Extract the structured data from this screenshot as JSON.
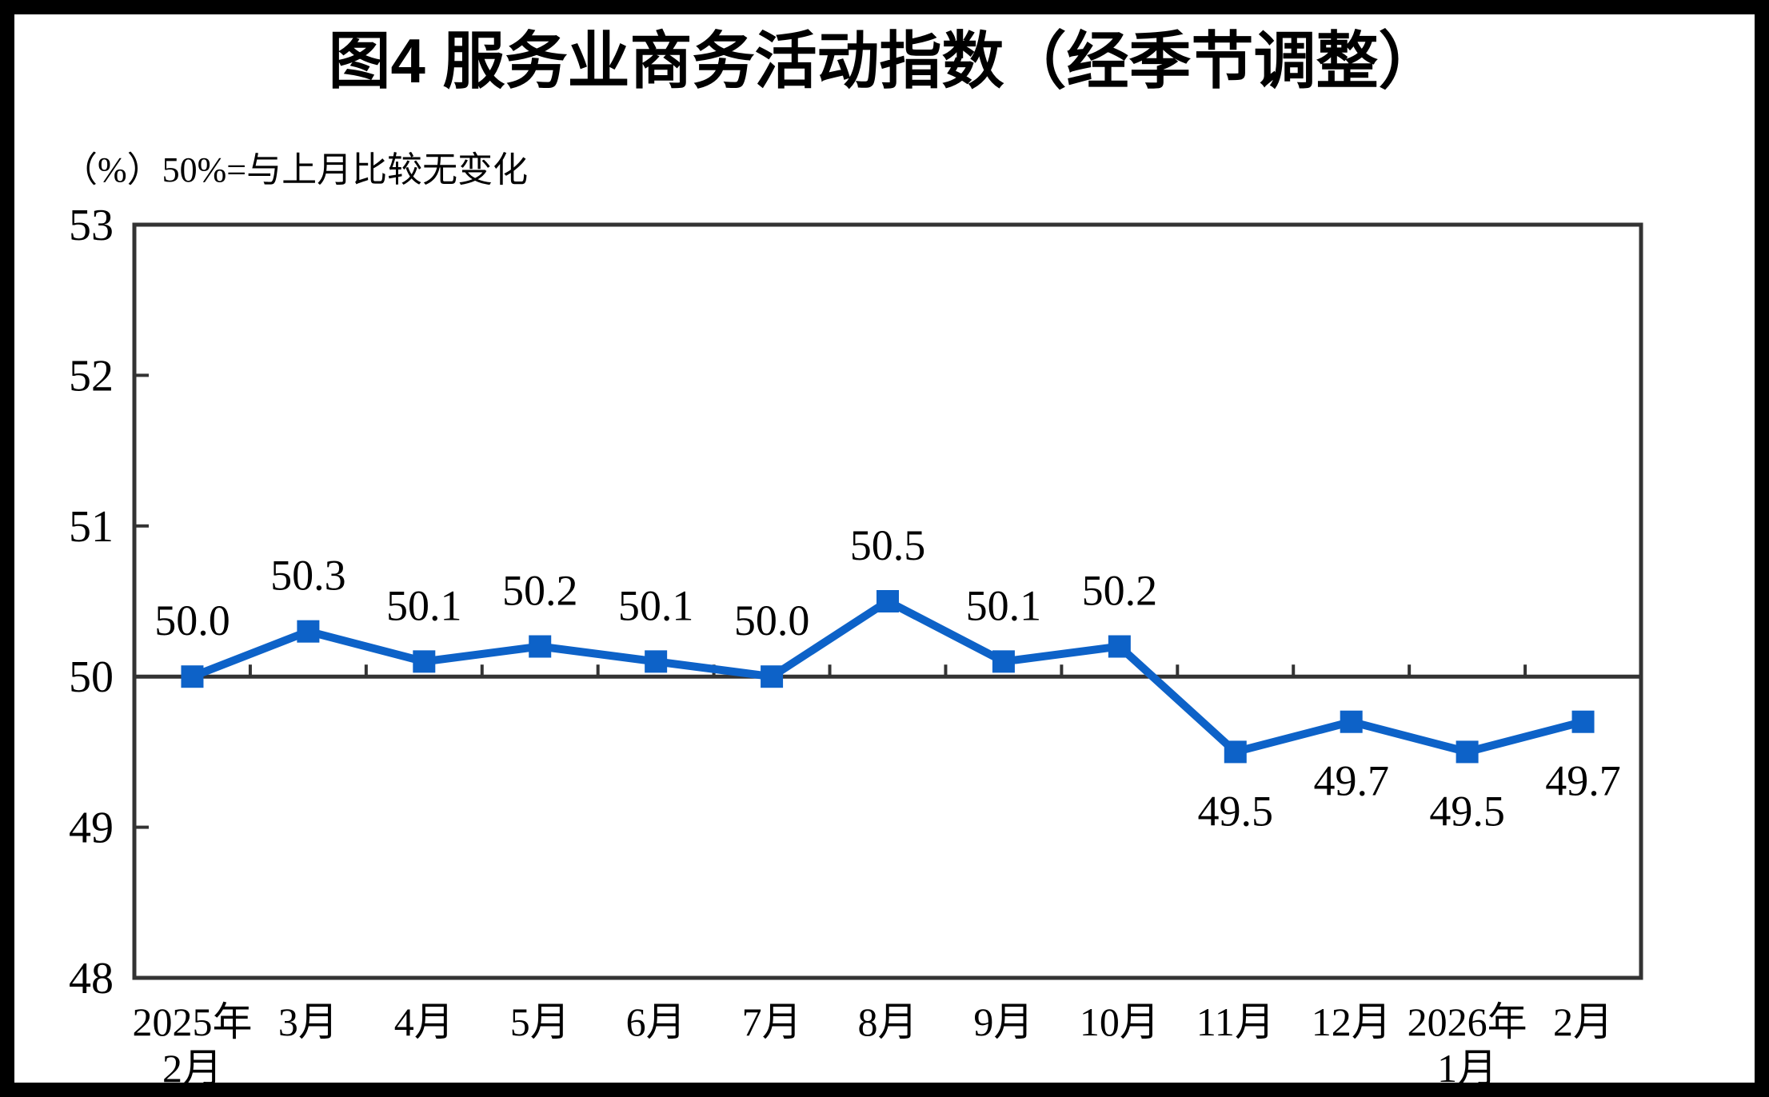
{
  "colors": {
    "line": "#0D62C8",
    "marker": "#0D62C8",
    "axis": "#333333",
    "text": "#000000",
    "frame": "#000000",
    "background": "#FFFFFF"
  },
  "chart_data": {
    "type": "line",
    "title": "图4  服务业商务活动指数（经季节调整）",
    "unit_note": "（%）50%=与上月比较无变化",
    "categories": [
      [
        "2025年",
        "2月"
      ],
      [
        "3月"
      ],
      [
        "4月"
      ],
      [
        "5月"
      ],
      [
        "6月"
      ],
      [
        "7月"
      ],
      [
        "8月"
      ],
      [
        "9月"
      ],
      [
        "10月"
      ],
      [
        "11月"
      ],
      [
        "12月"
      ],
      [
        "2026年",
        "1月"
      ],
      [
        "2月"
      ]
    ],
    "values": [
      50.0,
      50.3,
      50.1,
      50.2,
      50.1,
      50.0,
      50.5,
      50.1,
      50.2,
      49.5,
      49.7,
      49.5,
      49.7
    ],
    "labels": [
      "50.0",
      "50.3",
      "50.1",
      "50.2",
      "50.1",
      "50.0",
      "50.5",
      "50.1",
      "50.2",
      "49.5",
      "49.7",
      "49.5",
      "49.7"
    ],
    "series_name": "服务业商务活动指数",
    "ylim": [
      48,
      53
    ],
    "yticks": [
      48,
      49,
      50,
      51,
      52,
      53
    ],
    "baseline": 50,
    "grid": false,
    "legend": "none",
    "marker_shape": "square"
  }
}
